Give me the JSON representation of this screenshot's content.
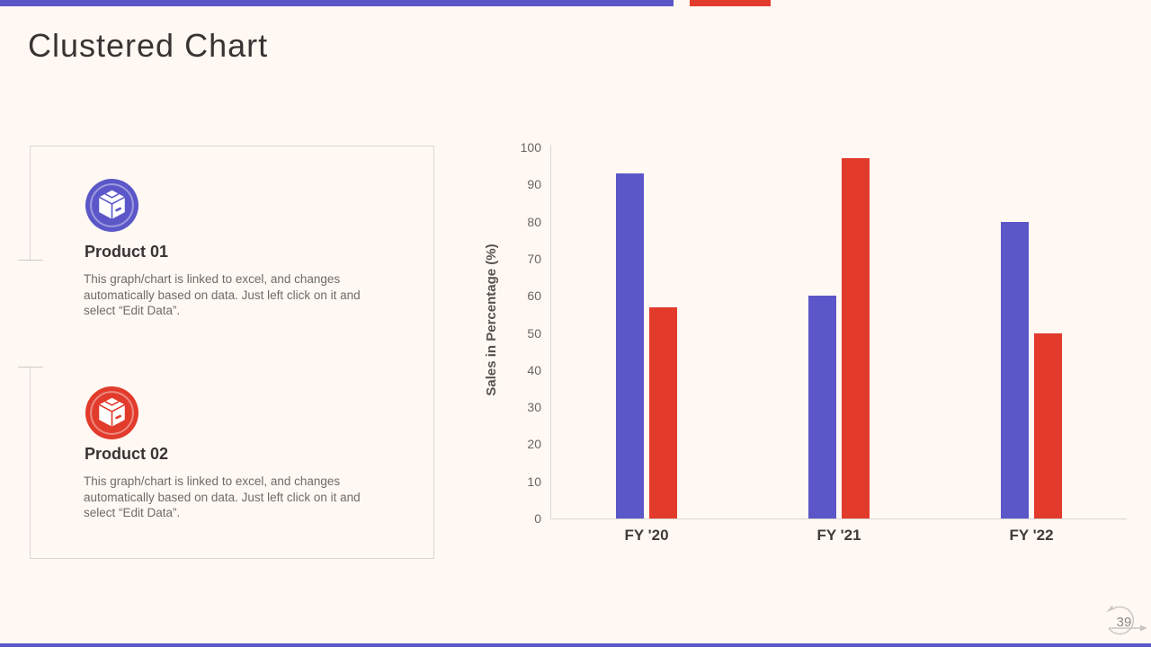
{
  "slide": {
    "title": "Clustered Chart",
    "page_number": "39"
  },
  "products": [
    {
      "name": "Product 01",
      "description": "This graph/chart is linked to excel, and changes automatically based on data. Just left click on it and select “Edit Data”.",
      "color": "#5B57C8",
      "icon": "package-box-icon"
    },
    {
      "name": "Product 02",
      "description": "This graph/chart is linked to excel, and changes automatically based on data. Just left click on it and select “Edit Data”.",
      "color": "#E23B2C",
      "icon": "package-box-icon"
    }
  ],
  "chart_data": {
    "type": "bar",
    "title": "",
    "categories": [
      "FY '20",
      "FY '21",
      "FY '22"
    ],
    "series": [
      {
        "name": "Product 01",
        "color": "#5B57C8",
        "values": [
          93,
          60,
          80
        ]
      },
      {
        "name": "Product 02",
        "color": "#E23B2C",
        "values": [
          57,
          97,
          50
        ]
      }
    ],
    "xlabel": "",
    "ylabel": "Sales in Percentage (%)",
    "ylim": [
      0,
      100
    ],
    "ytick_step": 10,
    "grid": false,
    "legend": "none"
  },
  "colors": {
    "background": "#FFF8F3",
    "primary": "#5B57C8",
    "secondary": "#E23B2C",
    "title_text": "#3A3333",
    "body_text": "#6F6B68",
    "axis_text": "#6B6663",
    "axis_line": "#DAD6D3",
    "card_border": "#DDD8D4",
    "page_text": "#8C8884",
    "ornament": "#C9C5C1"
  }
}
